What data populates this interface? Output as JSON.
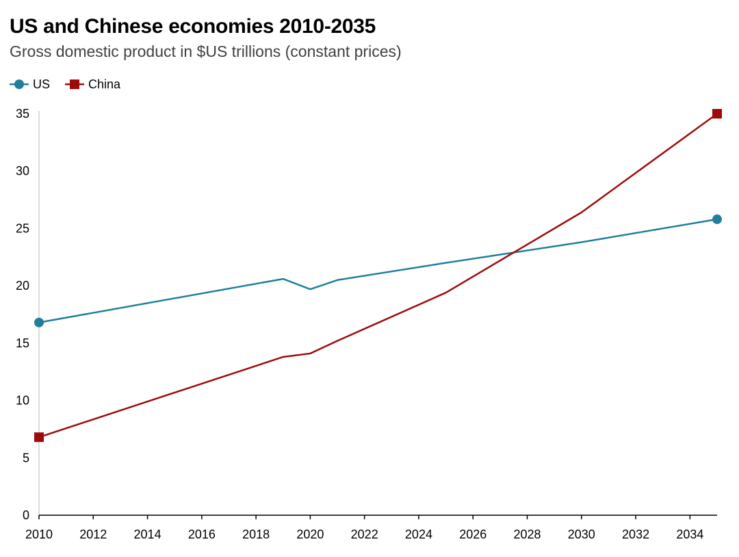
{
  "title": "US and Chinese economies 2010-2035",
  "subtitle": "Gross domestic product in $US trillions (constant prices)",
  "chart_data": {
    "type": "line",
    "title": "US and Chinese economies 2010-2035",
    "subtitle": "Gross domestic product in $US trillions (constant prices)",
    "xlabel": "",
    "ylabel": "",
    "xlim": [
      2010,
      2035
    ],
    "ylim": [
      0,
      35
    ],
    "x_ticks": [
      2010,
      2012,
      2014,
      2016,
      2018,
      2020,
      2022,
      2024,
      2026,
      2028,
      2030,
      2032,
      2034
    ],
    "y_ticks": [
      0,
      5,
      10,
      15,
      20,
      25,
      30,
      35
    ],
    "grid": false,
    "legend": "top-left",
    "series": [
      {
        "name": "US",
        "color": "#1f7f9c",
        "marker": "circle",
        "x": [
          2010,
          2019,
          2020,
          2021,
          2025,
          2030,
          2035
        ],
        "values": [
          16.8,
          20.6,
          19.7,
          20.5,
          22.0,
          23.8,
          25.8
        ]
      },
      {
        "name": "China",
        "color": "#9e0a0a",
        "marker": "square",
        "x": [
          2010,
          2019,
          2020,
          2021,
          2025,
          2030,
          2035
        ],
        "values": [
          6.8,
          13.8,
          14.1,
          15.2,
          19.4,
          26.4,
          35.0
        ]
      }
    ]
  }
}
